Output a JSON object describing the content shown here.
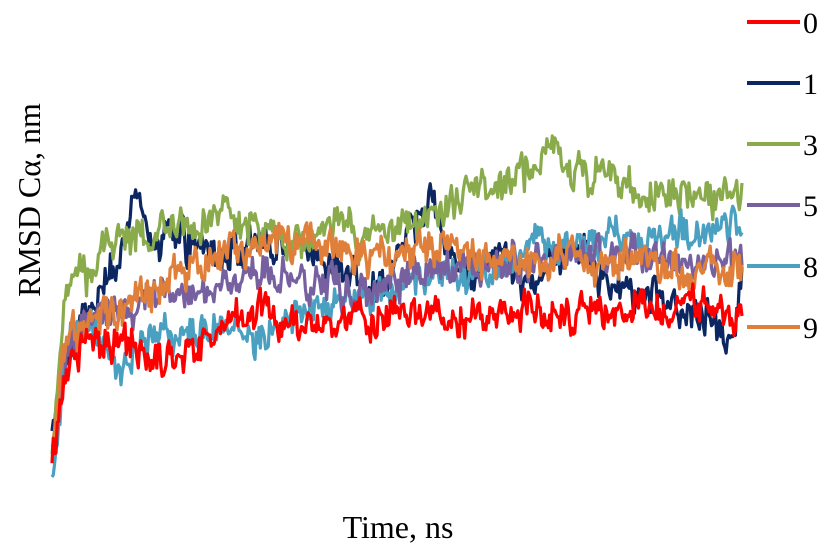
{
  "chart_data": {
    "type": "line",
    "title": "",
    "xlabel": "Time, ns",
    "ylabel": "RMSD  Cα,  nm",
    "grid": false,
    "axis_ticks_shown": false,
    "legend_position": "right",
    "ylim": [
      0,
      1
    ],
    "xlim": [
      0,
      100
    ],
    "series": [
      {
        "name": "0",
        "color": "#ff0000",
        "x": [
          0,
          2,
          5,
          10,
          15,
          20,
          25,
          30,
          35,
          40,
          45,
          50,
          55,
          60,
          65,
          70,
          75,
          80,
          85,
          90,
          95,
          100
        ],
        "values": [
          0.08,
          0.28,
          0.36,
          0.34,
          0.3,
          0.33,
          0.38,
          0.42,
          0.37,
          0.38,
          0.4,
          0.39,
          0.4,
          0.38,
          0.4,
          0.41,
          0.41,
          0.4,
          0.41,
          0.42,
          0.42,
          0.4
        ]
      },
      {
        "name": "1",
        "color": "#0b2660",
        "x": [
          0,
          2,
          5,
          8,
          10,
          12,
          15,
          18,
          20,
          25,
          30,
          35,
          40,
          45,
          48,
          50,
          55,
          60,
          65,
          70,
          75,
          80,
          85,
          90,
          95,
          98,
          100
        ],
        "values": [
          0.15,
          0.3,
          0.4,
          0.45,
          0.55,
          0.66,
          0.54,
          0.6,
          0.55,
          0.54,
          0.57,
          0.55,
          0.52,
          0.48,
          0.45,
          0.55,
          0.65,
          0.48,
          0.55,
          0.47,
          0.55,
          0.48,
          0.44,
          0.42,
          0.4,
          0.33,
          0.45
        ]
      },
      {
        "name": "3",
        "color": "#8aab4c",
        "x": [
          0,
          2,
          4,
          6,
          8,
          10,
          15,
          20,
          25,
          30,
          35,
          40,
          45,
          50,
          55,
          60,
          65,
          70,
          72,
          75,
          80,
          85,
          90,
          95,
          100
        ],
        "values": [
          0.1,
          0.45,
          0.5,
          0.47,
          0.56,
          0.58,
          0.57,
          0.6,
          0.62,
          0.58,
          0.57,
          0.6,
          0.57,
          0.59,
          0.62,
          0.67,
          0.68,
          0.73,
          0.8,
          0.72,
          0.7,
          0.67,
          0.67,
          0.66,
          0.68
        ]
      },
      {
        "name": "5",
        "color": "#7660a0",
        "x": [
          0,
          2,
          5,
          10,
          15,
          20,
          25,
          30,
          35,
          40,
          45,
          50,
          55,
          60,
          65,
          70,
          75,
          80,
          85,
          90,
          95,
          100
        ],
        "values": [
          0.12,
          0.32,
          0.4,
          0.42,
          0.44,
          0.46,
          0.47,
          0.48,
          0.49,
          0.46,
          0.45,
          0.48,
          0.5,
          0.49,
          0.51,
          0.52,
          0.53,
          0.52,
          0.54,
          0.52,
          0.5,
          0.54
        ]
      },
      {
        "name": "8",
        "color": "#4aa0c0",
        "x": [
          0,
          2,
          5,
          8,
          10,
          15,
          20,
          25,
          30,
          35,
          40,
          45,
          50,
          55,
          60,
          65,
          70,
          75,
          80,
          85,
          90,
          95,
          100
        ],
        "values": [
          0.05,
          0.34,
          0.38,
          0.32,
          0.3,
          0.35,
          0.36,
          0.38,
          0.34,
          0.4,
          0.42,
          0.44,
          0.46,
          0.48,
          0.47,
          0.5,
          0.55,
          0.56,
          0.57,
          0.56,
          0.58,
          0.59,
          0.58
        ]
      },
      {
        "name": "9",
        "color": "#e07f3a",
        "x": [
          0,
          2,
          5,
          8,
          10,
          15,
          20,
          25,
          30,
          35,
          40,
          45,
          50,
          55,
          60,
          65,
          70,
          75,
          80,
          85,
          90,
          95,
          100
        ],
        "values": [
          0.12,
          0.35,
          0.38,
          0.41,
          0.4,
          0.45,
          0.52,
          0.54,
          0.55,
          0.57,
          0.55,
          0.53,
          0.54,
          0.55,
          0.54,
          0.52,
          0.53,
          0.55,
          0.51,
          0.52,
          0.51,
          0.49,
          0.51
        ]
      }
    ]
  }
}
